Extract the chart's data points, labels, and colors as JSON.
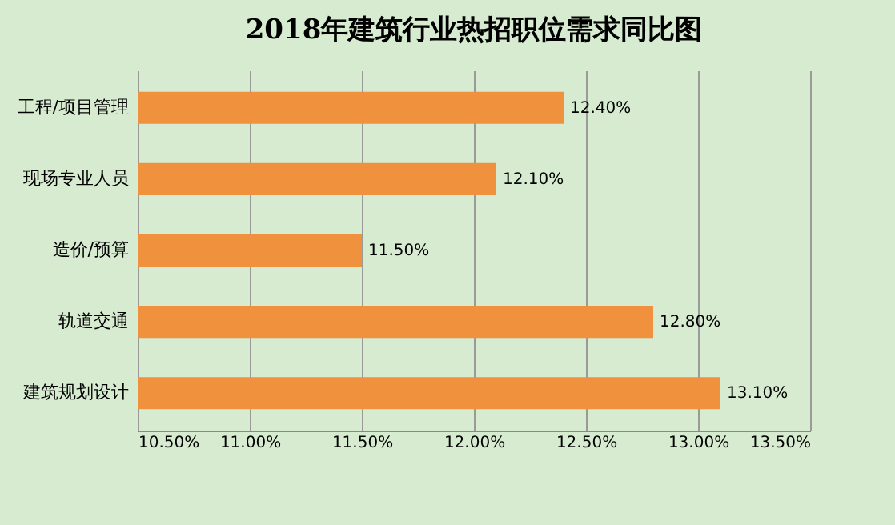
{
  "chart_data": {
    "type": "bar",
    "orientation": "horizontal",
    "title": "2018年建筑行业热招职位需求同比图",
    "categories": [
      "工程/项目管理",
      "现场专业人员",
      "造价/预算",
      "轨道交通",
      "建筑规划设计"
    ],
    "values": [
      12.4,
      12.1,
      11.5,
      12.8,
      13.1
    ],
    "value_labels": [
      "12.40%",
      "12.10%",
      "11.50%",
      "12.80%",
      "13.10%"
    ],
    "color": "#f0913e",
    "xlim": [
      10.5,
      13.5
    ],
    "xticks": [
      {
        "value": 10.5,
        "label": "10.50%"
      },
      {
        "value": 11,
        "label": "11.00%"
      },
      {
        "value": 11.5,
        "label": "11.50%"
      },
      {
        "value": 12,
        "label": "12.00%"
      },
      {
        "value": 12.5,
        "label": "12.50%"
      },
      {
        "value": 13,
        "label": "13.00%"
      },
      {
        "value": 13.5,
        "label": "13.50%"
      }
    ],
    "grid": "x"
  }
}
